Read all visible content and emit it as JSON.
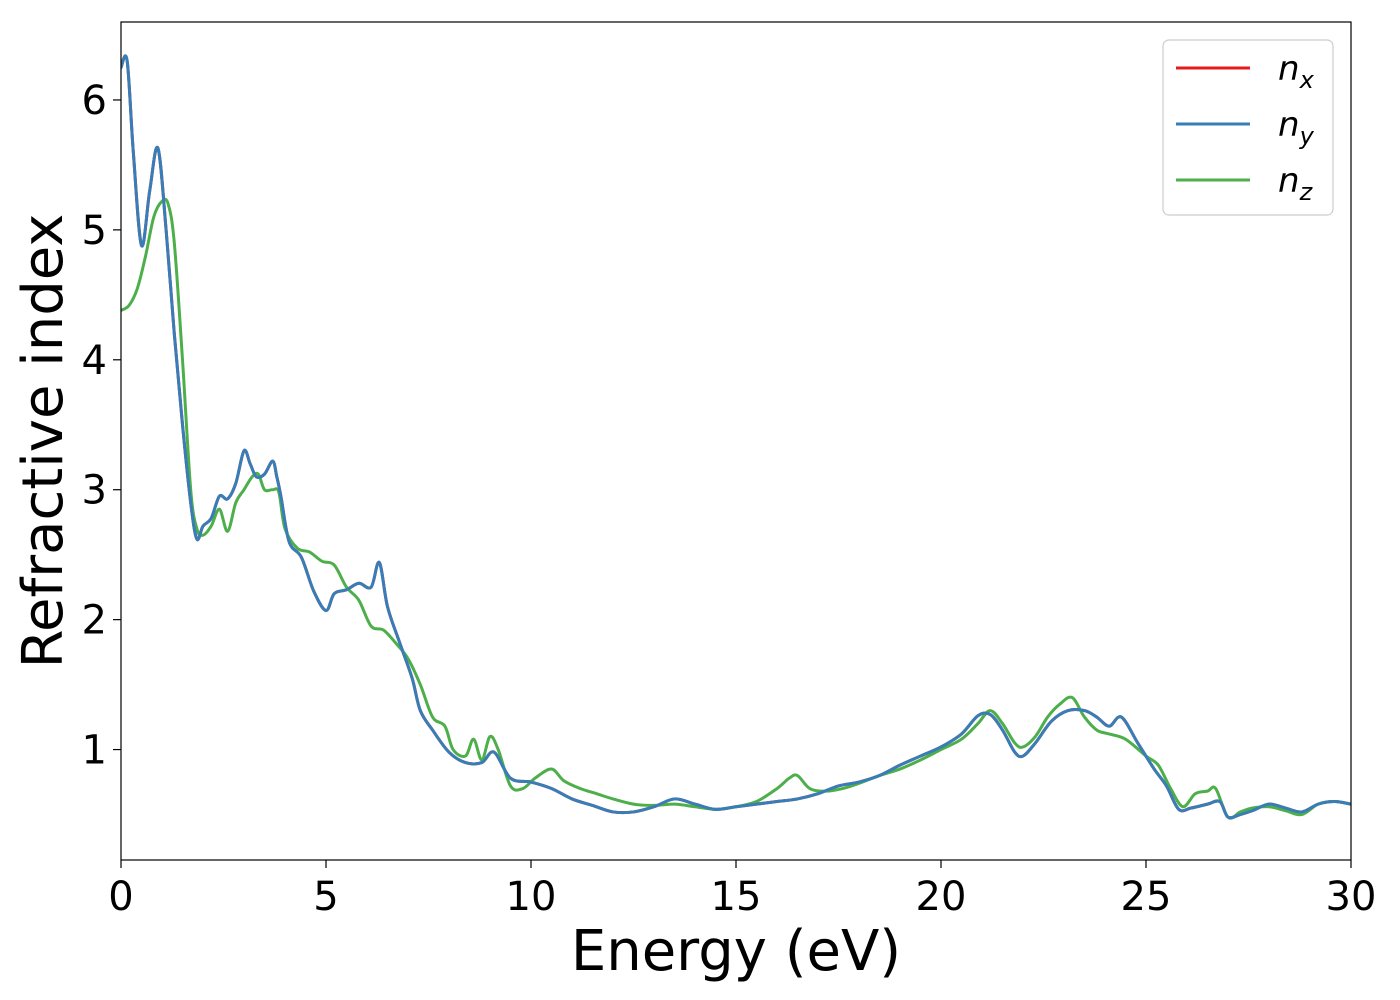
{
  "chart_data": {
    "type": "line",
    "xlabel": "Energy (eV)",
    "ylabel": "Refractive index",
    "xlim": [
      0,
      30
    ],
    "ylim": [
      0.15,
      6.6
    ],
    "xticks": [
      "0",
      "5",
      "10",
      "15",
      "20",
      "25",
      "30"
    ],
    "yticks": [
      "1",
      "2",
      "3",
      "4",
      "5",
      "6"
    ],
    "grid": false,
    "legend_position": "top-right",
    "series": [
      {
        "name": "n",
        "subscript": "x",
        "color": "#e41a1c",
        "x": [
          0,
          0.15,
          0.3,
          0.5,
          0.7,
          0.9,
          1.1,
          1.3,
          1.5,
          1.7,
          1.85,
          2.0,
          2.2,
          2.4,
          2.6,
          2.8,
          3.0,
          3.15,
          3.3,
          3.5,
          3.7,
          3.8,
          3.9,
          4.1,
          4.4,
          4.7,
          5.0,
          5.2,
          5.5,
          5.8,
          6.1,
          6.3,
          6.5,
          6.8,
          7.1,
          7.3,
          7.6,
          8.0,
          8.4,
          8.8,
          9.1,
          9.5,
          10.0,
          10.5,
          11.0,
          11.5,
          12.0,
          12.5,
          13.0,
          13.5,
          14.0,
          14.5,
          15.0,
          15.5,
          16.0,
          16.5,
          17.0,
          17.5,
          18.0,
          18.5,
          19.0,
          19.5,
          20.0,
          20.5,
          20.9,
          21.2,
          21.5,
          21.8,
          22.0,
          22.3,
          22.7,
          23.1,
          23.5,
          23.8,
          24.1,
          24.4,
          24.8,
          25.2,
          25.5,
          25.8,
          26.1,
          26.5,
          26.8,
          27.0,
          27.3,
          27.6,
          28.0,
          28.4,
          28.8,
          29.2,
          29.6,
          30.0
        ],
        "values": [
          6.25,
          6.3,
          5.6,
          4.88,
          5.3,
          5.63,
          5.0,
          4.2,
          3.5,
          2.9,
          2.62,
          2.72,
          2.78,
          2.95,
          2.93,
          3.05,
          3.3,
          3.2,
          3.1,
          3.12,
          3.22,
          3.1,
          2.95,
          2.6,
          2.48,
          2.22,
          2.07,
          2.2,
          2.23,
          2.28,
          2.25,
          2.44,
          2.1,
          1.82,
          1.55,
          1.3,
          1.15,
          0.98,
          0.9,
          0.9,
          0.98,
          0.78,
          0.75,
          0.7,
          0.62,
          0.57,
          0.52,
          0.52,
          0.56,
          0.62,
          0.58,
          0.54,
          0.56,
          0.58,
          0.6,
          0.62,
          0.66,
          0.72,
          0.75,
          0.8,
          0.88,
          0.95,
          1.02,
          1.12,
          1.26,
          1.27,
          1.15,
          0.98,
          0.95,
          1.05,
          1.22,
          1.3,
          1.3,
          1.25,
          1.18,
          1.25,
          1.05,
          0.85,
          0.72,
          0.54,
          0.55,
          0.58,
          0.6,
          0.48,
          0.5,
          0.53,
          0.58,
          0.55,
          0.52,
          0.58,
          0.6,
          0.58
        ]
      },
      {
        "name": "n",
        "subscript": "y",
        "color": "#377eb8",
        "x": [
          0,
          0.15,
          0.3,
          0.5,
          0.7,
          0.9,
          1.1,
          1.3,
          1.5,
          1.7,
          1.85,
          2.0,
          2.2,
          2.4,
          2.6,
          2.8,
          3.0,
          3.15,
          3.3,
          3.5,
          3.7,
          3.8,
          3.9,
          4.1,
          4.4,
          4.7,
          5.0,
          5.2,
          5.5,
          5.8,
          6.1,
          6.3,
          6.5,
          6.8,
          7.1,
          7.3,
          7.6,
          8.0,
          8.4,
          8.8,
          9.1,
          9.5,
          10.0,
          10.5,
          11.0,
          11.5,
          12.0,
          12.5,
          13.0,
          13.5,
          14.0,
          14.5,
          15.0,
          15.5,
          16.0,
          16.5,
          17.0,
          17.5,
          18.0,
          18.5,
          19.0,
          19.5,
          20.0,
          20.5,
          20.9,
          21.2,
          21.5,
          21.8,
          22.0,
          22.3,
          22.7,
          23.1,
          23.5,
          23.8,
          24.1,
          24.4,
          24.8,
          25.2,
          25.5,
          25.8,
          26.1,
          26.5,
          26.8,
          27.0,
          27.3,
          27.6,
          28.0,
          28.4,
          28.8,
          29.2,
          29.6,
          30.0
        ],
        "values": [
          6.25,
          6.3,
          5.6,
          4.88,
          5.3,
          5.63,
          5.0,
          4.2,
          3.5,
          2.9,
          2.62,
          2.72,
          2.78,
          2.95,
          2.93,
          3.05,
          3.3,
          3.2,
          3.1,
          3.12,
          3.22,
          3.1,
          2.95,
          2.6,
          2.48,
          2.22,
          2.07,
          2.2,
          2.23,
          2.28,
          2.25,
          2.44,
          2.1,
          1.82,
          1.55,
          1.3,
          1.15,
          0.98,
          0.9,
          0.9,
          0.98,
          0.78,
          0.75,
          0.7,
          0.62,
          0.57,
          0.52,
          0.52,
          0.56,
          0.62,
          0.58,
          0.54,
          0.56,
          0.58,
          0.6,
          0.62,
          0.66,
          0.72,
          0.75,
          0.8,
          0.88,
          0.95,
          1.02,
          1.12,
          1.26,
          1.27,
          1.15,
          0.98,
          0.95,
          1.05,
          1.22,
          1.3,
          1.3,
          1.25,
          1.18,
          1.25,
          1.05,
          0.85,
          0.72,
          0.54,
          0.55,
          0.58,
          0.6,
          0.48,
          0.5,
          0.53,
          0.58,
          0.55,
          0.52,
          0.58,
          0.6,
          0.58
        ]
      },
      {
        "name": "n",
        "subscript": "z",
        "color": "#4daf4a",
        "x": [
          0,
          0.2,
          0.4,
          0.6,
          0.8,
          1.0,
          1.15,
          1.3,
          1.5,
          1.7,
          1.85,
          2.0,
          2.2,
          2.4,
          2.6,
          2.8,
          3.0,
          3.2,
          3.35,
          3.5,
          3.7,
          3.85,
          4.0,
          4.3,
          4.6,
          4.9,
          5.2,
          5.5,
          5.8,
          6.1,
          6.4,
          6.7,
          7.0,
          7.3,
          7.6,
          7.9,
          8.1,
          8.4,
          8.6,
          8.8,
          9.0,
          9.2,
          9.5,
          9.8,
          10.1,
          10.5,
          10.8,
          11.2,
          11.6,
          12.0,
          12.5,
          13.0,
          13.5,
          14.0,
          14.5,
          15.0,
          15.5,
          16.0,
          16.3,
          16.5,
          16.8,
          17.2,
          17.6,
          18.0,
          18.5,
          19.0,
          19.5,
          20.0,
          20.5,
          20.9,
          21.2,
          21.5,
          21.8,
          22.0,
          22.3,
          22.6,
          22.9,
          23.2,
          23.5,
          23.8,
          24.1,
          24.5,
          25.0,
          25.3,
          25.6,
          25.9,
          26.2,
          26.5,
          26.7,
          27.0,
          27.3,
          27.6,
          28.0,
          28.4,
          28.8,
          29.2,
          29.6,
          30.0
        ],
        "values": [
          4.38,
          4.42,
          4.55,
          4.8,
          5.1,
          5.22,
          5.2,
          4.9,
          4.0,
          3.0,
          2.7,
          2.65,
          2.72,
          2.85,
          2.68,
          2.9,
          3.0,
          3.1,
          3.12,
          3.0,
          3.0,
          2.98,
          2.7,
          2.55,
          2.52,
          2.45,
          2.42,
          2.25,
          2.15,
          1.95,
          1.92,
          1.82,
          1.7,
          1.5,
          1.25,
          1.18,
          1.0,
          0.95,
          1.08,
          0.92,
          1.1,
          1.0,
          0.72,
          0.7,
          0.78,
          0.85,
          0.76,
          0.7,
          0.66,
          0.62,
          0.58,
          0.57,
          0.58,
          0.56,
          0.54,
          0.56,
          0.6,
          0.7,
          0.78,
          0.8,
          0.7,
          0.68,
          0.7,
          0.74,
          0.8,
          0.85,
          0.92,
          1.0,
          1.08,
          1.2,
          1.3,
          1.2,
          1.05,
          1.02,
          1.1,
          1.25,
          1.35,
          1.4,
          1.25,
          1.15,
          1.12,
          1.08,
          0.95,
          0.88,
          0.7,
          0.56,
          0.66,
          0.68,
          0.7,
          0.48,
          0.52,
          0.55,
          0.56,
          0.53,
          0.5,
          0.58,
          0.6,
          0.58
        ]
      }
    ]
  }
}
